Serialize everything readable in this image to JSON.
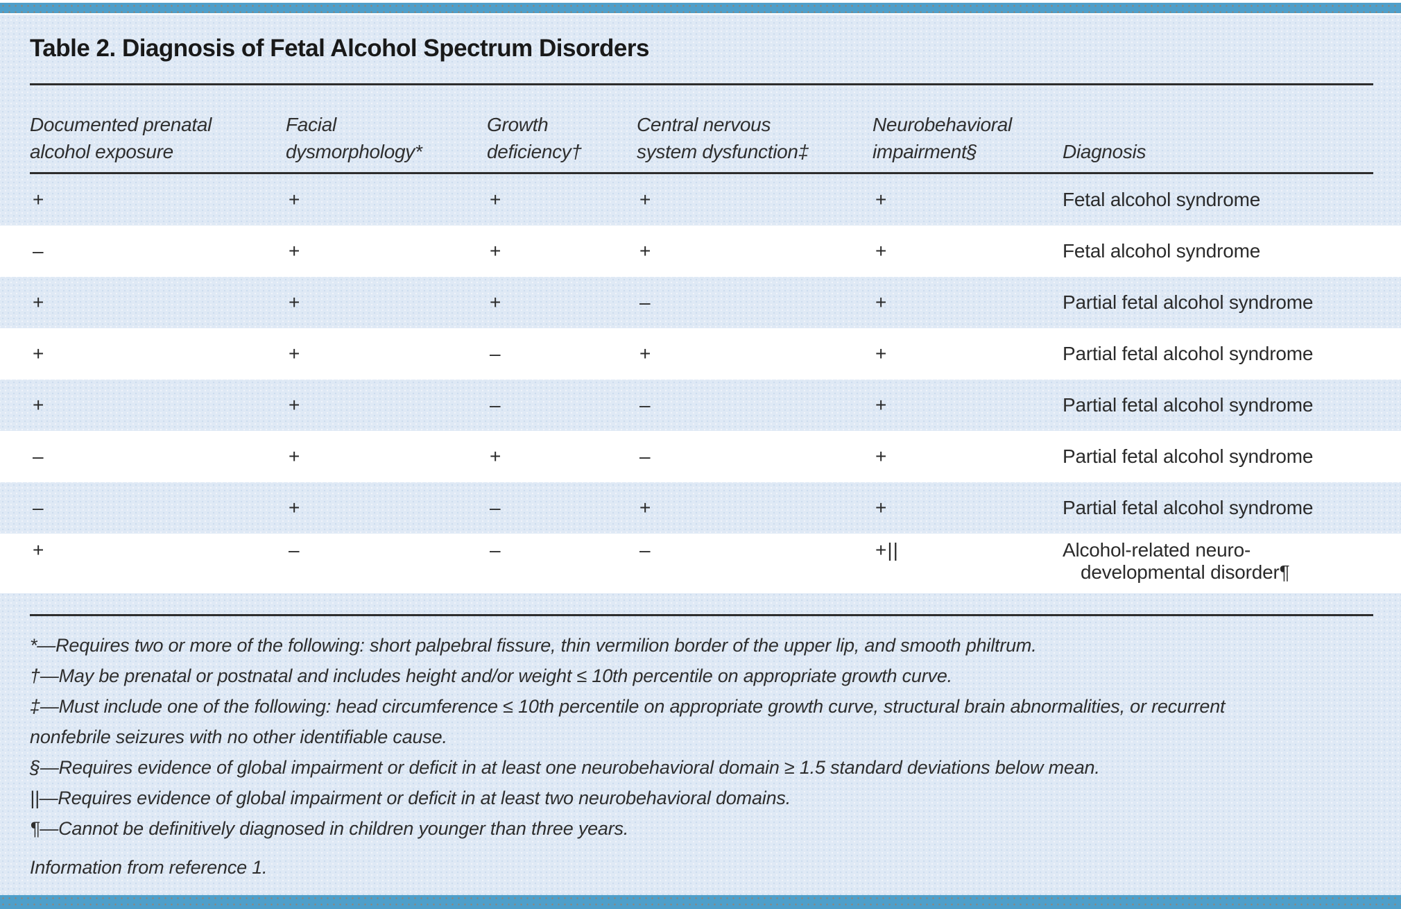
{
  "title": "Table 2. Diagnosis of Fetal Alcohol Spectrum Disorders",
  "table": {
    "columns": [
      {
        "line1": "Documented prenatal",
        "line2": "alcohol exposure"
      },
      {
        "line1": "Facial",
        "line2": "dysmorphology*"
      },
      {
        "line1": "Growth",
        "line2": "deficiency†"
      },
      {
        "line1": "Central nervous",
        "line2": "system dysfunction‡"
      },
      {
        "line1": "Neurobehavioral",
        "line2": "impairment§"
      },
      {
        "line1": "",
        "line2": "Diagnosis"
      }
    ],
    "rows": [
      {
        "cells": [
          "+",
          "+",
          "+",
          "+",
          "+"
        ],
        "diagnosis": "Fetal alcohol syndrome"
      },
      {
        "cells": [
          "–",
          "+",
          "+",
          "+",
          "+"
        ],
        "diagnosis": "Fetal alcohol syndrome"
      },
      {
        "cells": [
          "+",
          "+",
          "+",
          "–",
          "+"
        ],
        "diagnosis": "Partial fetal alcohol syndrome"
      },
      {
        "cells": [
          "+",
          "+",
          "–",
          "+",
          "+"
        ],
        "diagnosis": "Partial fetal alcohol syndrome"
      },
      {
        "cells": [
          "+",
          "+",
          "–",
          "–",
          "+"
        ],
        "diagnosis": "Partial fetal alcohol syndrome"
      },
      {
        "cells": [
          "–",
          "+",
          "+",
          "–",
          "+"
        ],
        "diagnosis": "Partial fetal alcohol syndrome"
      },
      {
        "cells": [
          "–",
          "+",
          "–",
          "+",
          "+"
        ],
        "diagnosis": "Partial fetal alcohol syndrome"
      },
      {
        "cells": [
          "+",
          "–",
          "–",
          "–",
          "+||"
        ],
        "diagnosis": "Alcohol-related neuro-\ndevelopmental disorder¶"
      }
    ]
  },
  "footnotes": [
    "*—Requires two or more of the following: short palpebral fissure, thin vermilion border of the upper lip, and smooth philtrum.",
    "†—May be prenatal or postnatal and includes height and/or weight ≤ 10th percentile on appropriate growth curve.",
    "‡—Must include one of the following: head circumference ≤ 10th percentile on appropriate growth curve, structural brain abnormalities, or recurrent\nnonfebrile seizures with no other identifiable cause.",
    "§—Requires evidence of global impairment or deficit in at least one neurobehavioral domain ≥ 1.5 standard deviations below mean.",
    "||—Requires evidence of global impairment or deficit in at least two neurobehavioral domains.",
    "¶—Cannot be definitively diagnosed in children younger than three years."
  ],
  "source": "Information from reference 1.",
  "colors": {
    "accent_bar": "#4f9fca",
    "panel_background": "#dfe9f5",
    "row_white": "#ffffff",
    "rule": "#2d2d2d",
    "text": "#2b2b2b"
  }
}
